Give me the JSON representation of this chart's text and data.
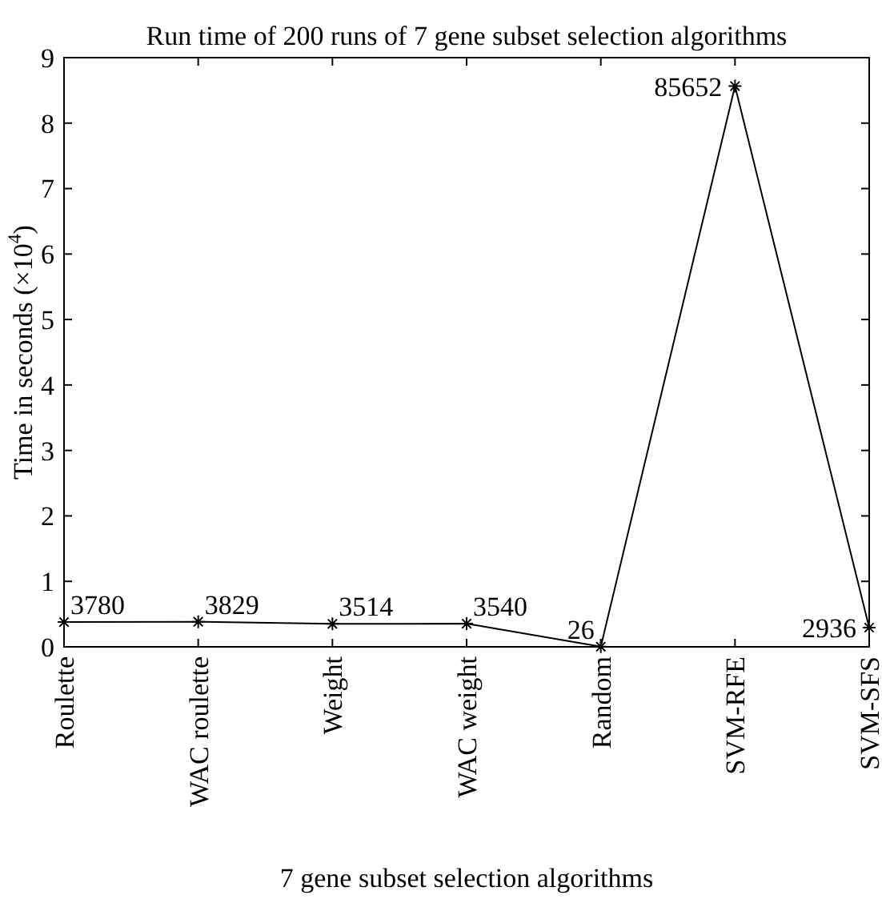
{
  "chart_data": {
    "type": "line",
    "title": "Run time of 200 runs of 7 gene subset selection algorithms",
    "xlabel": "7 gene subset selection algorithms",
    "ylabel": "Time in seconds (×10$^{4}$)",
    "categories": [
      "Roulette",
      "WAC roulette",
      "Weight",
      "WAC weight",
      "Random",
      "SVM-RFE",
      "SVM-SFS"
    ],
    "series": [
      {
        "color": "#000000",
        "values": [
          0.378,
          0.3829,
          0.3514,
          0.354,
          0.0026,
          8.5652,
          0.2936
        ]
      }
    ],
    "value_labels": [
      "3780",
      "3829",
      "3514",
      "3540",
      "26",
      "85652",
      "2936"
    ],
    "ylim": [
      0,
      9
    ],
    "yticks": [
      0,
      1,
      2,
      3,
      4,
      5,
      6,
      7,
      8,
      9
    ],
    "marker": "cross",
    "line_style": "solid",
    "grid": false
  }
}
